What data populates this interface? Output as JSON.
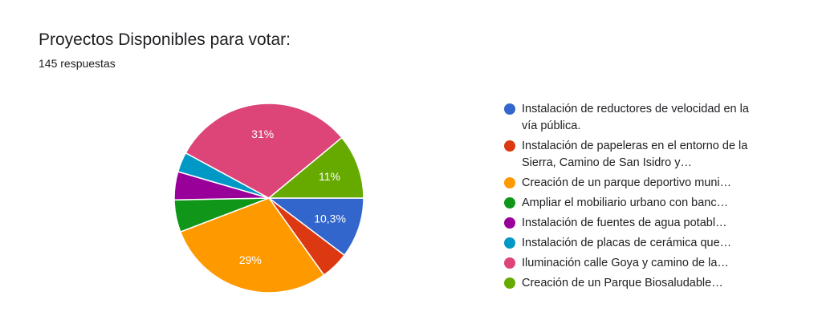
{
  "chart_data": {
    "type": "pie",
    "title": "Proyectos Disponibles para votar:",
    "subtitle": "145 respuestas",
    "slices": [
      {
        "label": "Instalación de reductores de velocidad en la vía pública.",
        "value": 10.3,
        "display": "10,3%",
        "color": "#3366cc"
      },
      {
        "label": "Instalación de papeleras en el entorno de la Sierra, Camino de San Isidro y…",
        "value": 4.8,
        "display": "",
        "color": "#dc3912"
      },
      {
        "label": "Creación de un parque deportivo muni…",
        "value": 29,
        "display": "29%",
        "color": "#ff9900"
      },
      {
        "label": "Ampliar el mobiliario urbano con banc…",
        "value": 5.5,
        "display": "",
        "color": "#109618"
      },
      {
        "label": "Instalación de fuentes de agua potabl…",
        "value": 4.8,
        "display": "",
        "color": "#990099"
      },
      {
        "label": "Instalación de placas de cerámica que…",
        "value": 3.4,
        "display": "",
        "color": "#0099c6"
      },
      {
        "label": "Iluminación calle Goya y camino de la…",
        "value": 31,
        "display": "31%",
        "color": "#dd4477"
      },
      {
        "label": "Creación de un Parque Biosaludable…",
        "value": 11,
        "display": "11%",
        "color": "#66aa00"
      }
    ],
    "legend_position": "right"
  }
}
